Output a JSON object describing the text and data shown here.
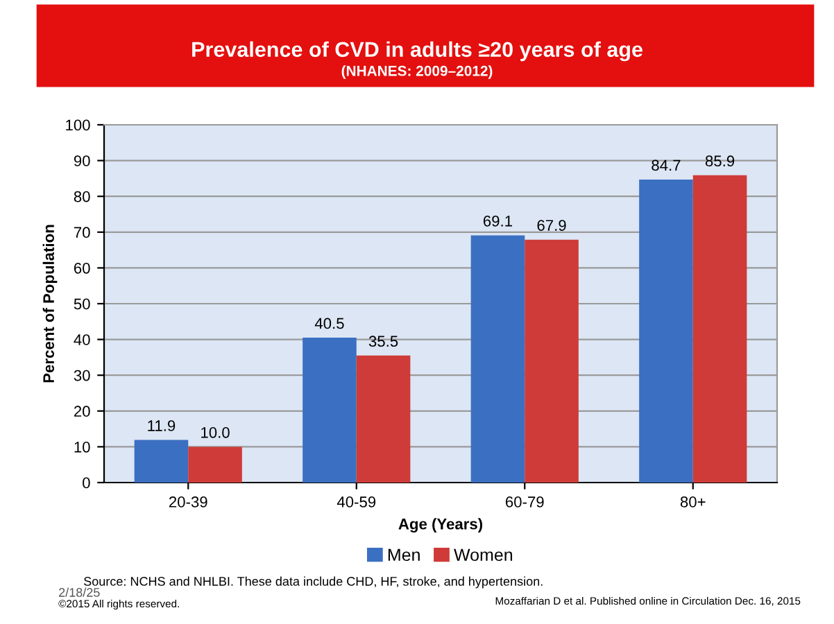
{
  "chart_data": {
    "type": "bar",
    "title": "Prevalence of CVD in adults ≥20 years of age",
    "subtitle": "(NHANES: 2009–2012)",
    "xlabel": "Age (Years)",
    "ylabel": "Percent of Population",
    "categories": [
      "20-39",
      "40-59",
      "60-79",
      "80+"
    ],
    "series": [
      {
        "name": "Men",
        "color": "#3b6fc2",
        "values": [
          11.9,
          40.5,
          69.1,
          84.7
        ]
      },
      {
        "name": "Women",
        "color": "#cf3b38",
        "values": [
          10.0,
          35.5,
          67.9,
          85.9
        ]
      }
    ],
    "value_labels": [
      [
        "11.9",
        "40.5",
        "69.1",
        "84.7"
      ],
      [
        "10.0",
        "35.5",
        "67.9",
        "85.9"
      ]
    ],
    "ylim": [
      0,
      100
    ],
    "yticks": [
      0,
      10,
      20,
      30,
      40,
      50,
      60,
      70,
      80,
      90,
      100
    ],
    "grid": "y",
    "legend": "bottom",
    "annotations": [
      "Source: NCHS and NHLBI. These data include CHD, HF, stroke, and hypertension.",
      "2/18/25",
      "©2015 All rights reserved.",
      "Mozaffarian D et al. Published online in Circulation Dec. 16, 2015"
    ]
  }
}
